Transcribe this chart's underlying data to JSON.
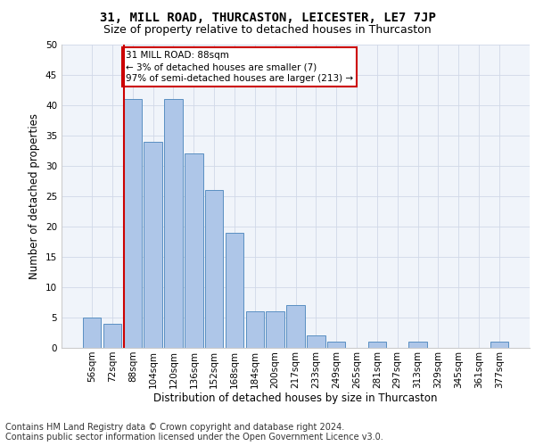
{
  "title": "31, MILL ROAD, THURCASTON, LEICESTER, LE7 7JP",
  "subtitle": "Size of property relative to detached houses in Thurcaston",
  "xlabel": "Distribution of detached houses by size in Thurcaston",
  "ylabel": "Number of detached properties",
  "categories": [
    "56sqm",
    "72sqm",
    "88sqm",
    "104sqm",
    "120sqm",
    "136sqm",
    "152sqm",
    "168sqm",
    "184sqm",
    "200sqm",
    "217sqm",
    "233sqm",
    "249sqm",
    "265sqm",
    "281sqm",
    "297sqm",
    "313sqm",
    "329sqm",
    "345sqm",
    "361sqm",
    "377sqm"
  ],
  "values": [
    5,
    4,
    41,
    34,
    41,
    32,
    26,
    19,
    6,
    6,
    7,
    2,
    1,
    0,
    1,
    0,
    1,
    0,
    0,
    0,
    1
  ],
  "bar_color": "#aec6e8",
  "bar_edge_color": "#5a8fc2",
  "highlight_index": 2,
  "highlight_line_color": "#cc0000",
  "annotation_line1": "31 MILL ROAD: 88sqm",
  "annotation_line2": "← 3% of detached houses are smaller (7)",
  "annotation_line3": "97% of semi-detached houses are larger (213) →",
  "annotation_box_color": "#ffffff",
  "annotation_box_edge": "#cc0000",
  "ylim": [
    0,
    50
  ],
  "yticks": [
    0,
    5,
    10,
    15,
    20,
    25,
    30,
    35,
    40,
    45,
    50
  ],
  "grid_color": "#d0d8e8",
  "background_color": "#f0f4fa",
  "footer_line1": "Contains HM Land Registry data © Crown copyright and database right 2024.",
  "footer_line2": "Contains public sector information licensed under the Open Government Licence v3.0.",
  "title_fontsize": 10,
  "subtitle_fontsize": 9,
  "xlabel_fontsize": 8.5,
  "ylabel_fontsize": 8.5,
  "tick_fontsize": 7.5,
  "footer_fontsize": 7,
  "annot_fontsize": 7.5
}
